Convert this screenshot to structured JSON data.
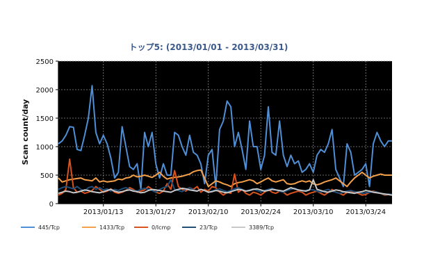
{
  "chart_data": {
    "type": "line",
    "title": "トップ5: (2013/01/01 - 2013/03/31)",
    "xlabel": "",
    "ylabel": "Scan count/day",
    "ylim": [
      0,
      2500
    ],
    "yticks": [
      0,
      500,
      1000,
      1500,
      2000,
      2500
    ],
    "xlim": [
      "2013-01-01",
      "2013-03-31"
    ],
    "xticks": [
      "2013/01/13",
      "2013/01/27",
      "2013/02/10",
      "2013/02/24",
      "2013/03/10",
      "2013/03/24"
    ],
    "grid": true,
    "legend_position": "bottom",
    "background": "#000000",
    "series": [
      {
        "name": "445/Tcp",
        "color": "#4f8fd8",
        "values": [
          1050,
          1100,
          1200,
          1350,
          1340,
          950,
          930,
          1200,
          1500,
          2070,
          1250,
          1050,
          1200,
          1050,
          800,
          450,
          550,
          1350,
          1000,
          650,
          600,
          700,
          250,
          1250,
          1000,
          1250,
          700,
          450,
          700,
          500,
          500,
          1250,
          1200,
          1000,
          850,
          1200,
          900,
          850,
          700,
          350,
          850,
          950,
          300,
          1300,
          1450,
          1800,
          1700,
          1000,
          1250,
          950,
          600,
          1450,
          1000,
          1000,
          600,
          850,
          1700,
          900,
          850,
          1450,
          850,
          650,
          850,
          700,
          750,
          550,
          600,
          700,
          550,
          850,
          950,
          900,
          1050,
          1300,
          600,
          450,
          300,
          1050,
          900,
          500,
          550,
          600,
          700,
          300,
          1050,
          1250,
          1100,
          1000,
          1100,
          1100
        ]
      },
      {
        "name": "1433/Tcp",
        "color": "#f5a04a",
        "values": [
          450,
          380,
          400,
          420,
          430,
          440,
          450,
          420,
          410,
          400,
          450,
          380,
          400,
          380,
          390,
          400,
          430,
          420,
          450,
          460,
          500,
          470,
          480,
          500,
          480,
          460,
          500,
          550,
          480,
          430,
          450,
          460,
          470,
          480,
          500,
          520,
          560,
          580,
          590,
          450,
          300,
          350,
          400,
          380,
          350,
          330,
          300,
          350,
          370,
          380,
          400,
          420,
          400,
          350,
          380,
          420,
          450,
          400,
          380,
          400,
          420,
          350,
          340,
          350,
          380,
          400,
          380,
          400,
          350,
          330,
          350,
          380,
          400,
          420,
          450,
          400,
          350,
          300,
          380,
          450,
          500,
          550,
          500,
          450,
          480,
          500,
          520,
          500,
          500,
          500
        ]
      },
      {
        "name": "0/Icmp",
        "color": "#d9531e",
        "values": [
          150,
          180,
          250,
          780,
          280,
          200,
          220,
          180,
          200,
          230,
          300,
          250,
          200,
          220,
          260,
          200,
          180,
          200,
          230,
          280,
          250,
          200,
          220,
          240,
          300,
          250,
          200,
          180,
          220,
          350,
          250,
          580,
          300,
          250,
          220,
          280,
          250,
          300,
          200,
          250,
          220,
          300,
          280,
          200,
          150,
          200,
          180,
          520,
          200,
          250,
          180,
          150,
          200,
          180,
          150,
          200,
          250,
          200,
          180,
          220,
          200,
          150,
          180,
          200,
          220,
          200,
          150,
          180,
          200,
          220,
          180,
          150,
          200,
          250,
          200,
          180,
          150,
          200,
          220,
          200,
          180,
          150,
          160,
          200,
          220,
          200,
          180,
          150,
          160,
          150
        ]
      },
      {
        "name": "23/Tcp",
        "color": "#1f4e79",
        "values": [
          250,
          280,
          300,
          280,
          260,
          300,
          250,
          220,
          280,
          300,
          250,
          280,
          240,
          260,
          220,
          250,
          230,
          260,
          280,
          250,
          230,
          220,
          250,
          270,
          250,
          230,
          200,
          250,
          280,
          300,
          420,
          250,
          230,
          210,
          250,
          280,
          240,
          220,
          250,
          230,
          200,
          220,
          240,
          260,
          230,
          210,
          230,
          260,
          280,
          250,
          220,
          240,
          260,
          230,
          210,
          230,
          250,
          270,
          240,
          220,
          200,
          230,
          250,
          270,
          240,
          220,
          230,
          250,
          240,
          220,
          200,
          230,
          250,
          220,
          200,
          180,
          200,
          220,
          230,
          210,
          200,
          180,
          190,
          200,
          210,
          200,
          180,
          160,
          170,
          160
        ]
      },
      {
        "name": "3389/Tcp",
        "color": "#c8c8c8",
        "values": [
          180,
          200,
          220,
          210,
          190,
          200,
          220,
          240,
          230,
          210,
          200,
          190,
          210,
          230,
          250,
          220,
          200,
          210,
          230,
          240,
          220,
          210,
          190,
          200,
          230,
          250,
          240,
          230,
          220,
          210,
          200,
          230,
          250,
          270,
          260,
          240,
          230,
          220,
          250,
          230,
          200,
          210,
          230,
          220,
          200,
          190,
          210,
          230,
          250,
          240,
          220,
          230,
          250,
          260,
          240,
          220,
          230,
          250,
          240,
          230,
          220,
          250,
          280,
          260,
          240,
          230,
          220,
          240,
          420,
          250,
          230,
          210,
          200,
          220,
          240,
          230,
          210,
          200,
          190,
          180,
          200,
          210,
          230,
          220,
          200,
          190,
          180,
          170,
          160,
          150
        ]
      }
    ]
  }
}
